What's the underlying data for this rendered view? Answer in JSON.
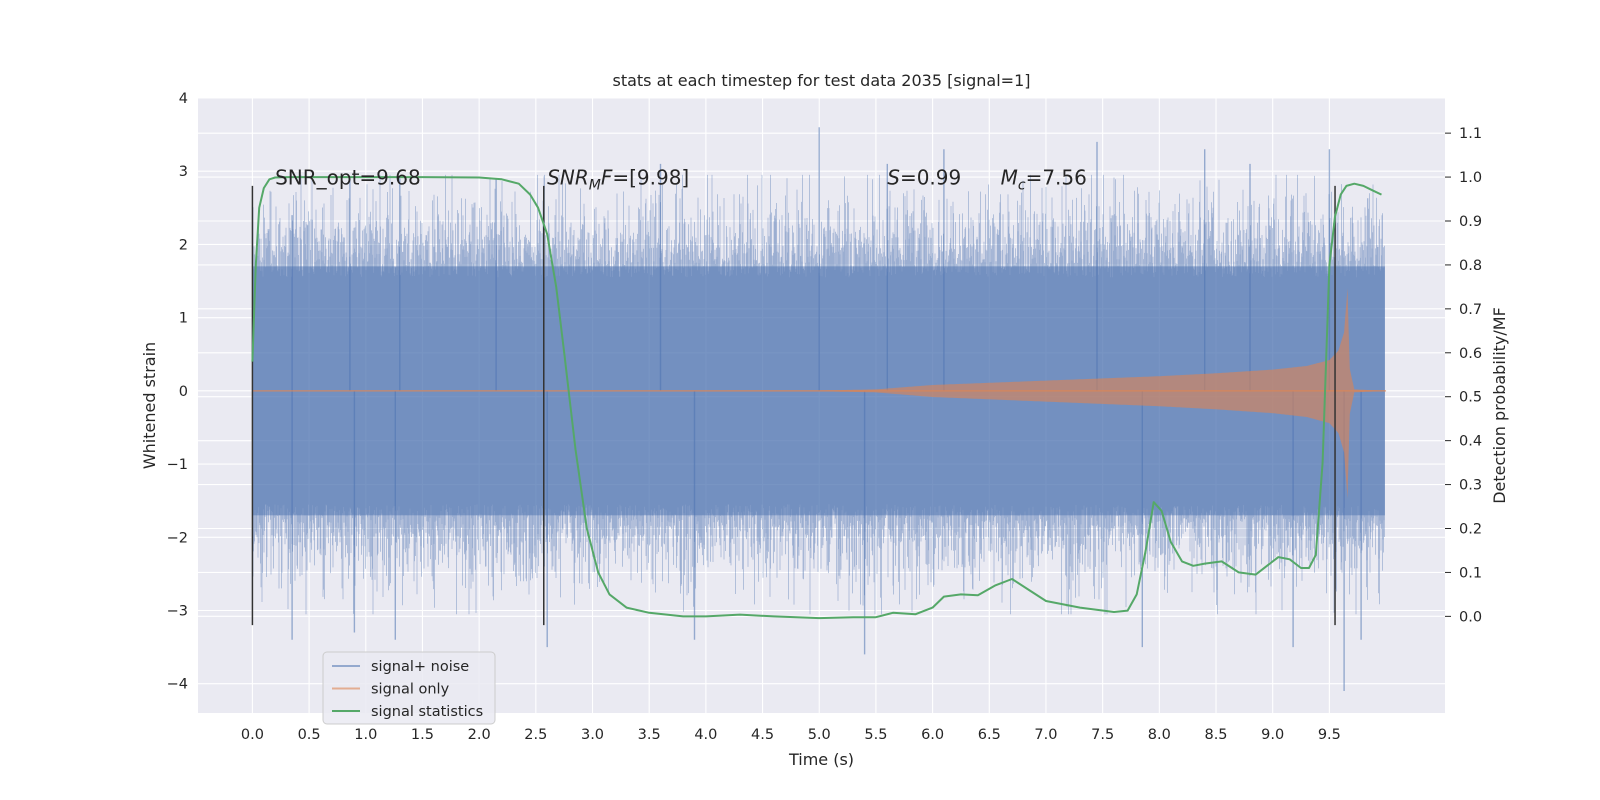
{
  "chart_data": {
    "type": "line",
    "title": "stats at each timestep for test data 2035 [signal=1]",
    "xlabel": "Time (s)",
    "ylabel": "Whitened strain",
    "ylabel_right": "Detection probability/MF",
    "xlim": [
      -0.48,
      10.52
    ],
    "ylim": [
      -4.4,
      4.0
    ],
    "ylim_right": [
      -0.22,
      1.18
    ],
    "x_ticks": [
      "0.0",
      "0.5",
      "1.0",
      "1.5",
      "2.0",
      "2.5",
      "3.0",
      "3.5",
      "4.0",
      "4.5",
      "5.0",
      "5.5",
      "6.0",
      "6.5",
      "7.0",
      "7.5",
      "8.0",
      "8.5",
      "9.0",
      "9.5"
    ],
    "y_ticks": [
      "−4",
      "−3",
      "−2",
      "−1",
      "0",
      "1",
      "2",
      "3",
      "4"
    ],
    "y_ticks_right": [
      "0.0",
      "0.1",
      "0.2",
      "0.3",
      "0.4",
      "0.5",
      "0.6",
      "0.7",
      "0.8",
      "0.9",
      "1.0",
      "1.1"
    ],
    "grid": true,
    "legend_position": "lower-left",
    "series": [
      {
        "name": "signal+ noise",
        "color": "#4c72b0",
        "alpha": 0.5,
        "axis": "left",
        "x_range": [
          0.0,
          9.99
        ],
        "typical_envelope": [
          -1.7,
          1.7
        ],
        "peaks": [
          {
            "x": 0.35,
            "y": 2.4
          },
          {
            "x": 0.86,
            "y": 2.9
          },
          {
            "x": 1.3,
            "y": 2.9
          },
          {
            "x": 2.15,
            "y": 2.9
          },
          {
            "x": 3.6,
            "y": 3.1
          },
          {
            "x": 5.0,
            "y": 3.6
          },
          {
            "x": 5.6,
            "y": 3.1
          },
          {
            "x": 6.1,
            "y": 3.3
          },
          {
            "x": 7.45,
            "y": 3.4
          },
          {
            "x": 8.4,
            "y": 3.3
          },
          {
            "x": 8.8,
            "y": 3.1
          },
          {
            "x": 9.5,
            "y": 3.3
          },
          {
            "x": 0.35,
            "y": -3.4
          },
          {
            "x": 0.9,
            "y": -3.3
          },
          {
            "x": 1.26,
            "y": -3.4
          },
          {
            "x": 2.6,
            "y": -3.5
          },
          {
            "x": 3.9,
            "y": -3.4
          },
          {
            "x": 5.4,
            "y": -3.6
          },
          {
            "x": 7.85,
            "y": -3.5
          },
          {
            "x": 9.18,
            "y": -3.5
          },
          {
            "x": 9.63,
            "y": -4.1
          },
          {
            "x": 9.78,
            "y": -3.4
          }
        ]
      },
      {
        "name": "signal only",
        "color": "#dd8452",
        "alpha": 0.6,
        "axis": "left",
        "envelope": [
          {
            "x": 0.0,
            "a": 0.0
          },
          {
            "x": 5.0,
            "a": 0.005
          },
          {
            "x": 5.5,
            "a": 0.02
          },
          {
            "x": 6.0,
            "a": 0.08
          },
          {
            "x": 6.5,
            "a": 0.11
          },
          {
            "x": 7.0,
            "a": 0.14
          },
          {
            "x": 7.5,
            "a": 0.17
          },
          {
            "x": 8.0,
            "a": 0.2
          },
          {
            "x": 8.5,
            "a": 0.24
          },
          {
            "x": 9.0,
            "a": 0.29
          },
          {
            "x": 9.3,
            "a": 0.34
          },
          {
            "x": 9.5,
            "a": 0.42
          },
          {
            "x": 9.58,
            "a": 0.55
          },
          {
            "x": 9.63,
            "a": 0.8
          },
          {
            "x": 9.66,
            "a": 1.4
          },
          {
            "x": 9.68,
            "a": 0.3
          },
          {
            "x": 9.72,
            "a": 0.02
          },
          {
            "x": 10.0,
            "a": 0.0
          }
        ]
      },
      {
        "name": "signal statistics",
        "color": "#55a868",
        "axis": "right",
        "x": [
          0.0,
          0.03,
          0.06,
          0.1,
          0.15,
          0.2,
          0.3,
          0.5,
          1.0,
          1.5,
          2.0,
          2.2,
          2.35,
          2.45,
          2.52,
          2.6,
          2.68,
          2.75,
          2.85,
          2.95,
          3.05,
          3.15,
          3.3,
          3.5,
          3.8,
          4.0,
          4.3,
          4.6,
          5.0,
          5.3,
          5.5,
          5.65,
          5.85,
          6.0,
          6.1,
          6.25,
          6.4,
          6.55,
          6.7,
          6.85,
          7.0,
          7.3,
          7.6,
          7.72,
          7.8,
          7.88,
          7.95,
          8.02,
          8.1,
          8.2,
          8.3,
          8.4,
          8.55,
          8.7,
          8.85,
          8.95,
          9.05,
          9.15,
          9.25,
          9.32,
          9.38,
          9.44,
          9.5,
          9.55,
          9.6,
          9.65,
          9.72,
          9.8,
          9.88,
          9.96
        ],
        "y": [
          0.58,
          0.8,
          0.93,
          0.975,
          0.995,
          0.999,
          1.0,
          1.0,
          1.0,
          1.0,
          0.999,
          0.995,
          0.985,
          0.96,
          0.93,
          0.87,
          0.75,
          0.6,
          0.38,
          0.2,
          0.1,
          0.05,
          0.02,
          0.008,
          0.0,
          0.0,
          0.004,
          0.0,
          -0.004,
          -0.002,
          -0.002,
          0.008,
          0.005,
          0.02,
          0.045,
          0.05,
          0.048,
          0.07,
          0.085,
          0.06,
          0.035,
          0.02,
          0.01,
          0.013,
          0.05,
          0.15,
          0.26,
          0.24,
          0.17,
          0.125,
          0.115,
          0.12,
          0.125,
          0.1,
          0.095,
          0.115,
          0.135,
          0.13,
          0.11,
          0.11,
          0.14,
          0.35,
          0.8,
          0.91,
          0.96,
          0.98,
          0.985,
          0.98,
          0.97,
          0.96
        ]
      }
    ],
    "vlines": [
      {
        "x": 0.0,
        "from": -3.2,
        "to": 2.8
      },
      {
        "x": 2.57,
        "from": -3.2,
        "to": 2.8
      },
      {
        "x": 9.55,
        "from": -3.2,
        "to": 2.8
      }
    ],
    "annotations": {
      "snr_opt": "SNR_opt=9.68",
      "snr_mf_name": "SNR",
      "snr_mf_sub": "M",
      "snr_mf_rest": "F",
      "snr_mf_value": "=[9.98]",
      "s_name": "S",
      "s_value": "=0.99",
      "mc_name": "M",
      "mc_sub": "c",
      "mc_value": "=7.56"
    }
  },
  "colors": {
    "plot_background": "#eaeaf2",
    "grid": "#ffffff",
    "vline": "#333333"
  }
}
